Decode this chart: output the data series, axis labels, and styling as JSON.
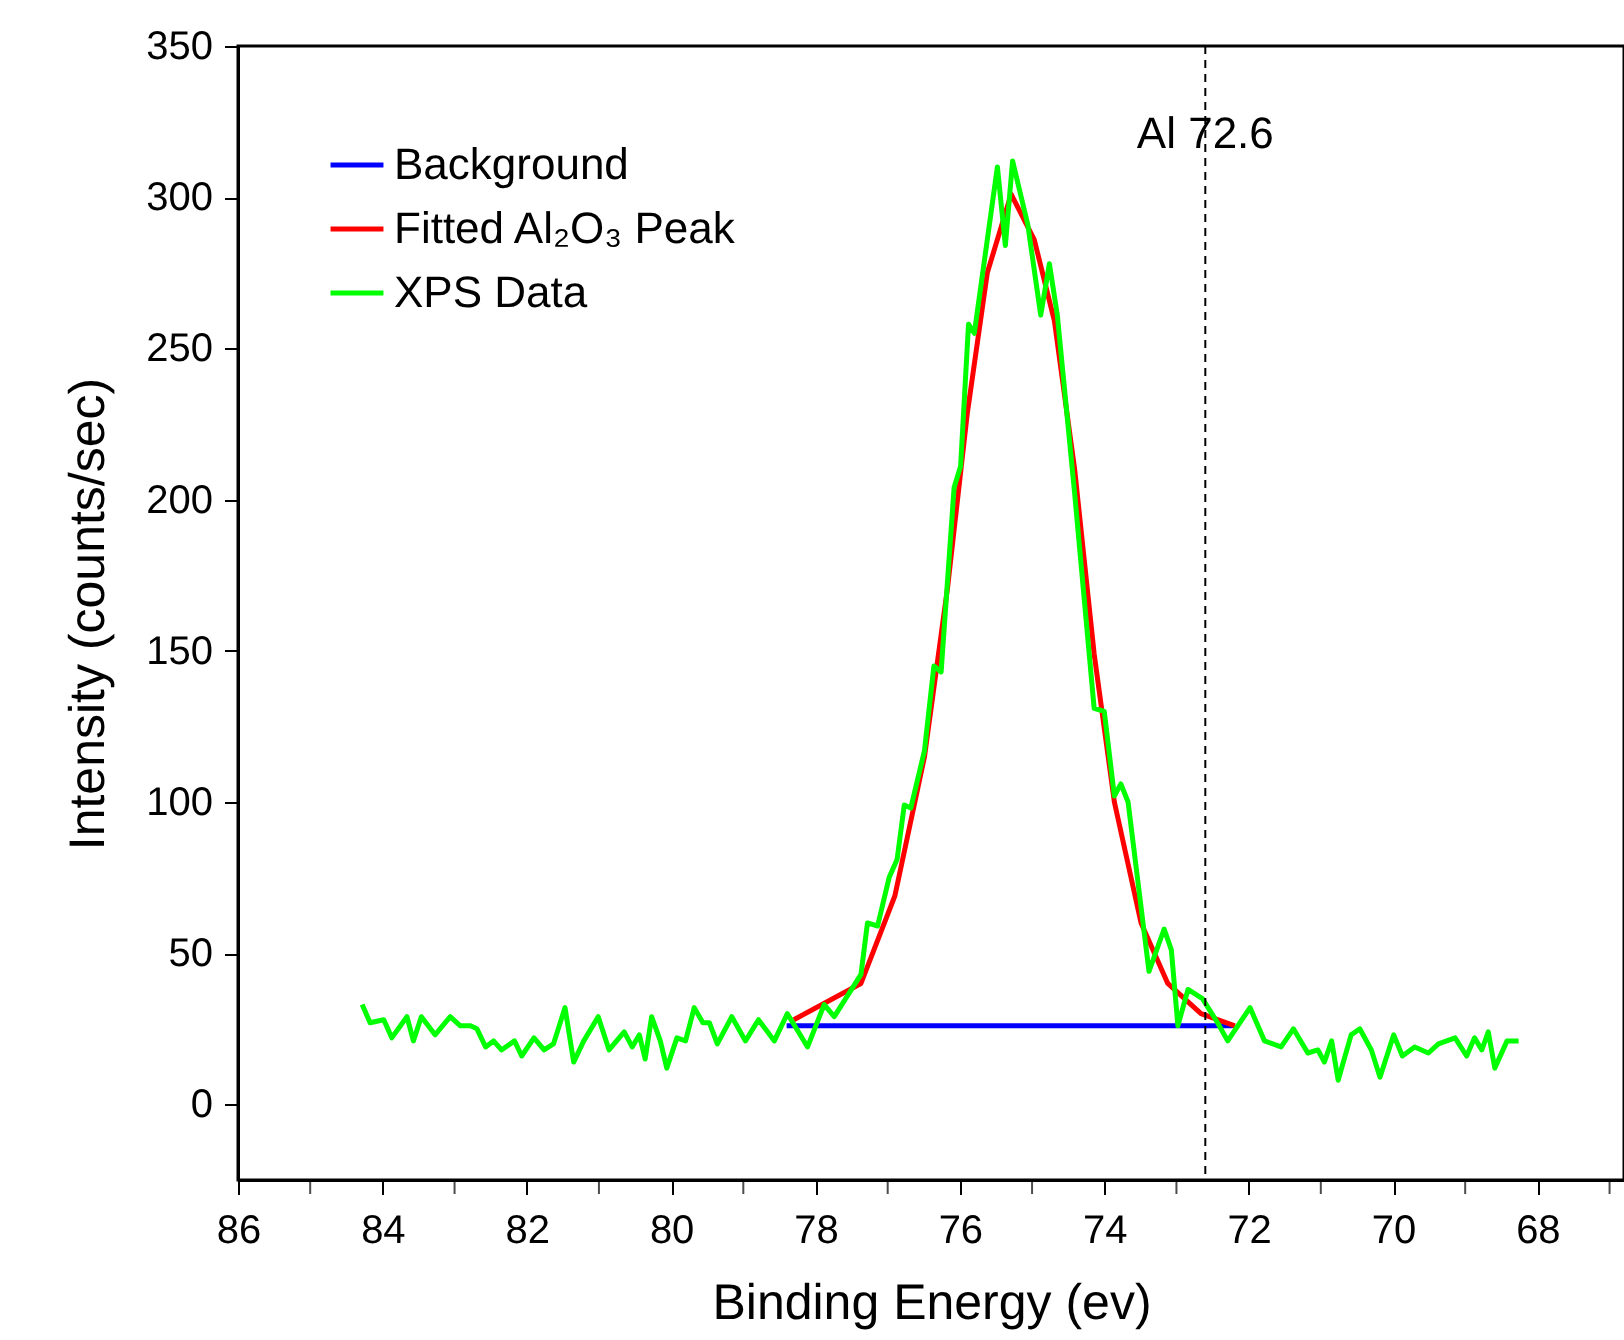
{
  "chart_data": {
    "type": "line",
    "xlabel": "Binding Energy (ev)",
    "ylabel": "Intensity (counts/sec)",
    "xlim": [
      86,
      66.8
    ],
    "ylim": [
      -25,
      350
    ],
    "xticks": [
      86,
      {
        "value": 85,
        "label": null
      },
      84,
      {
        "value": 83,
        "label": null
      },
      82,
      {
        "value": 81,
        "label": null
      },
      80,
      {
        "value": 79,
        "label": null
      },
      78,
      {
        "value": 77,
        "label": null
      },
      76,
      {
        "value": 75,
        "label": null
      },
      74,
      {
        "value": 73,
        "label": null
      },
      72,
      {
        "value": 71,
        "label": null
      },
      70,
      {
        "value": 69,
        "label": null
      },
      68,
      {
        "value": 67,
        "label": null
      }
    ],
    "yticks": [
      0,
      50,
      100,
      150,
      200,
      250,
      300,
      350
    ],
    "grid": false,
    "legend": "top left",
    "line_style": "solid",
    "marker": "none",
    "ref_lines": [
      {
        "axis": "x",
        "value": 72.6,
        "label": "Al 72.6",
        "color": "#000000",
        "line_style": "dashed"
      }
    ],
    "series": [
      {
        "name": "Background",
        "color": "#0000ff",
        "x": [
          78.4,
          72.2
        ],
        "values": [
          26,
          26
        ]
      },
      {
        "name": "Fitted Al₂O₃ Peak",
        "color": "#ff0000",
        "x": [
          78.3,
          77.37,
          76.9,
          76.49,
          76.17,
          75.9,
          75.62,
          75.29,
          74.97,
          74.69,
          74.41,
          74.14,
          73.86,
          73.49,
          73.12,
          72.66,
          72.19
        ],
        "values": [
          28,
          40,
          69,
          115,
          171,
          228,
          275,
          301,
          286,
          259,
          210,
          149,
          100,
          60,
          40,
          30,
          26
        ]
      },
      {
        "name": "XPS Data",
        "color": "#00ff00",
        "x": [
          84.28,
          84.17,
          83.98,
          83.87,
          83.66,
          83.57,
          83.46,
          83.27,
          83.06,
          82.92,
          82.78,
          82.69,
          82.57,
          82.46,
          82.35,
          82.17,
          82.07,
          81.9,
          81.76,
          81.63,
          81.47,
          81.35,
          81.21,
          81.01,
          80.86,
          80.65,
          80.54,
          80.44,
          80.36,
          80.27,
          80.15,
          80.06,
          79.92,
          79.8,
          79.68,
          79.56,
          79.47,
          79.36,
          79.16,
          78.97,
          78.79,
          78.57,
          78.39,
          78.11,
          77.88,
          77.74,
          77.37,
          77.28,
          77.14,
          76.98,
          76.87,
          76.77,
          76.68,
          76.49,
          76.36,
          76.26,
          76.08,
          75.99,
          75.88,
          75.8,
          75.48,
          75.37,
          75.27,
          75.06,
          74.88,
          74.76,
          74.65,
          74.41,
          74.14,
          74.0,
          73.86,
          73.77,
          73.67,
          73.38,
          73.17,
          73.07,
          72.98,
          72.84,
          72.64,
          72.43,
          72.29,
          71.98,
          71.78,
          71.55,
          71.38,
          71.18,
          71.04,
          70.95,
          70.85,
          70.76,
          70.58,
          70.46,
          70.3,
          70.18,
          69.99,
          69.87,
          69.7,
          69.51,
          69.37,
          69.14,
          68.98,
          68.87,
          68.77,
          68.68,
          68.59,
          68.42,
          68.26
        ],
        "values": [
          33,
          27,
          28,
          22,
          29,
          21,
          29,
          23,
          29,
          26,
          26,
          25,
          19,
          21,
          18,
          21,
          16,
          22,
          18,
          20,
          32,
          14,
          21,
          29,
          18,
          24,
          19,
          23,
          15,
          29,
          21,
          12,
          22,
          21,
          32,
          27,
          27,
          20,
          29,
          21,
          28,
          21,
          30,
          19,
          33,
          29,
          43,
          60,
          59,
          75,
          81,
          99,
          98,
          117,
          145,
          143,
          204,
          211,
          258,
          255,
          310,
          284,
          312,
          291,
          261,
          278,
          261,
          202,
          131,
          130,
          102,
          106,
          100,
          44,
          58,
          51,
          26,
          38,
          35,
          27,
          21,
          32,
          21,
          19,
          25,
          17,
          18,
          14,
          21,
          8,
          23,
          25,
          18,
          9,
          23,
          16,
          19,
          17,
          20,
          22,
          16,
          22,
          18,
          24,
          12,
          21,
          21
        ]
      }
    ]
  }
}
